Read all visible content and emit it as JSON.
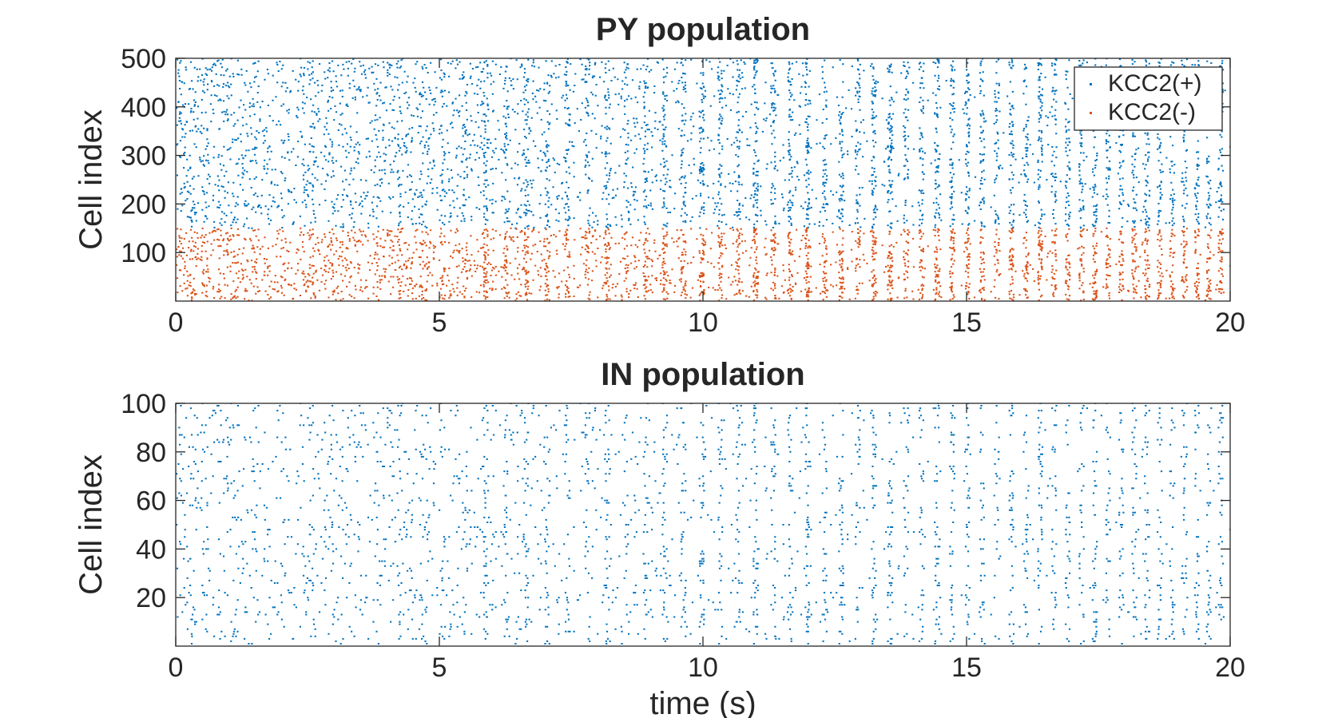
{
  "chart_data": [
    {
      "type": "scatter",
      "title": "PY population",
      "xlabel": "",
      "ylabel": "Cell index",
      "xlim": [
        0,
        20
      ],
      "ylim": [
        0,
        500
      ],
      "xticks": [
        "0",
        "5",
        "10",
        "15",
        "20"
      ],
      "yticks": [
        "100",
        "200",
        "300",
        "400",
        "500"
      ],
      "legend_position": "top-right",
      "series": [
        {
          "name": "KCC2(+)",
          "color": "#0072BD",
          "cell_range": [
            150,
            500
          ]
        },
        {
          "name": "KCC2(-)",
          "color": "#D95319",
          "cell_range": [
            1,
            150
          ]
        }
      ],
      "rhythm": {
        "start_time": 2.5,
        "period_start": 0.47,
        "period_end": 0.22
      }
    },
    {
      "type": "scatter",
      "title": "IN population",
      "xlabel": "time (s)",
      "ylabel": "Cell index",
      "xlim": [
        0,
        20
      ],
      "ylim": [
        0,
        100
      ],
      "xticks": [
        "0",
        "5",
        "10",
        "15",
        "20"
      ],
      "yticks": [
        "20",
        "40",
        "60",
        "80",
        "100"
      ],
      "series": [
        {
          "color": "#0072BD",
          "cell_range": [
            1,
            100
          ]
        }
      ]
    }
  ]
}
